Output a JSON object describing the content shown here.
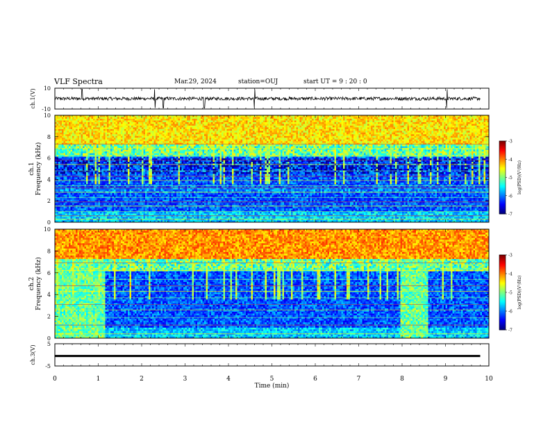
{
  "header": {
    "title": "VLF Spectra",
    "date": "Mar.29, 2024",
    "station": "station=OUJ",
    "start": "start  UT =   9 : 20 : 0"
  },
  "chart_data": [
    {
      "type": "line",
      "panel": "ch1-waveform",
      "ylabel": "ch.1(V)",
      "ylim": [
        -10,
        10
      ],
      "yticks": [
        "10",
        "-10"
      ],
      "xlim": [
        0,
        10
      ],
      "baseline": 0,
      "spikes_x": [
        0.63,
        2.3,
        2.5,
        3.44,
        4.6,
        9.03
      ]
    },
    {
      "type": "heatmap",
      "panel": "ch1-spectrogram",
      "ylabel": "ch.1\nFrequency (kHz)",
      "ylim": [
        0,
        10
      ],
      "yticks": [
        "0",
        "2",
        "4",
        "6",
        "8",
        "10"
      ],
      "xlim": [
        0,
        10
      ],
      "colorbar": {
        "label": "log(PSD)(V²/Hz)",
        "ticks": [
          "-3",
          "-4",
          "-5",
          "-6",
          "-7"
        ],
        "range": [
          -7,
          -3
        ]
      },
      "lines_khz": [
        0.3,
        0.6,
        1.0,
        1.5,
        1.9,
        2.3,
        2.8,
        3.2,
        3.4,
        3.9,
        4.3,
        4.8,
        5.4,
        5.8,
        6.2,
        6.9,
        7.3
      ]
    },
    {
      "type": "heatmap",
      "panel": "ch2-spectrogram",
      "ylabel": "ch.2\nFrequency (kHz)",
      "ylim": [
        0,
        10
      ],
      "yticks": [
        "0",
        "2",
        "4",
        "6",
        "8",
        "10"
      ],
      "xlim": [
        0,
        10
      ],
      "colorbar": {
        "label": "log(PSD)(V²/Hz)",
        "ticks": [
          "-3",
          "-4",
          "-5",
          "-6",
          "-7"
        ],
        "range": [
          -7,
          -3
        ]
      },
      "bright_band_min": [
        [
          0,
          1.15
        ],
        [
          7.95,
          8.6
        ]
      ],
      "lines_khz": [
        0.4,
        1.2,
        1.9,
        2.6,
        3.1,
        3.7,
        4.3,
        4.8,
        5.4,
        6.2,
        6.9
      ]
    },
    {
      "type": "line",
      "panel": "ch3-waveform",
      "ylabel": "ch.3(V)",
      "ylim": [
        -5,
        5
      ],
      "yticks": [
        "5",
        "-5"
      ],
      "xlim": [
        0,
        10
      ],
      "level": -0.5
    }
  ],
  "xaxis": {
    "label": "Time (min)",
    "ticks": [
      "0",
      "1",
      "2",
      "3",
      "4",
      "5",
      "6",
      "7",
      "8",
      "9",
      "10"
    ]
  }
}
